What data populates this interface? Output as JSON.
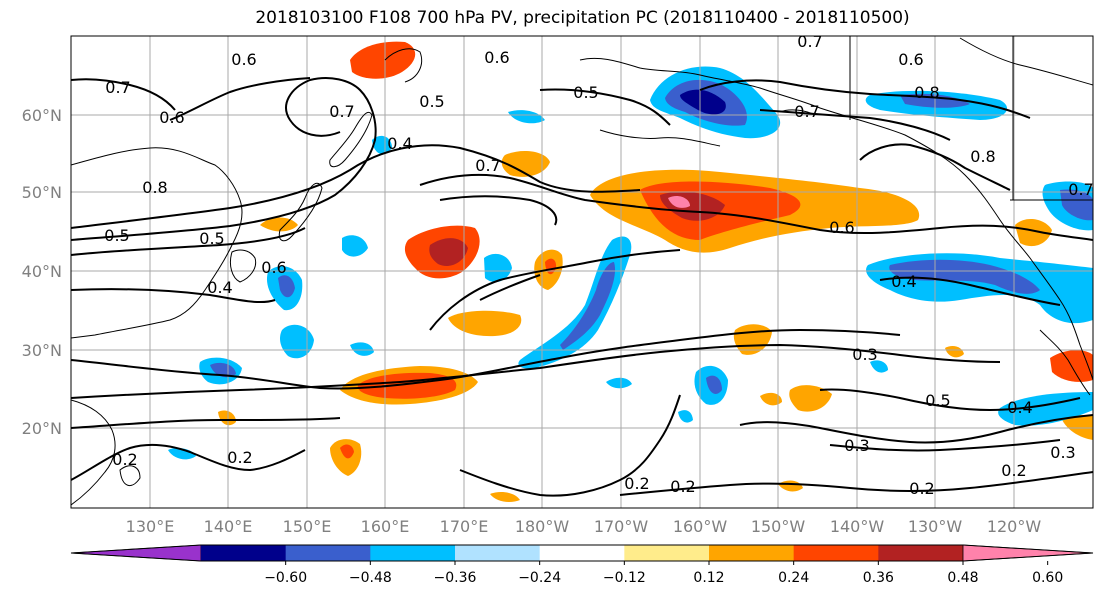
{
  "title": "2018103100 F108 700 hPa PV, precipitation PC (2018110400 - 2018110500)",
  "lat_labels": [
    "60°N",
    "50°N",
    "40°N",
    "30°N",
    "20°N"
  ],
  "lon_labels": [
    "130°E",
    "140°E",
    "150°E",
    "160°E",
    "170°E",
    "180°W",
    "170°W",
    "160°W",
    "150°W",
    "140°W",
    "130°W",
    "120°W"
  ],
  "colorbar": {
    "ticks": [
      "−0.60",
      "−0.48",
      "−0.36",
      "−0.24",
      "−0.12",
      "0.12",
      "0.24",
      "0.36",
      "0.48",
      "0.60"
    ],
    "colors": [
      "#9932cc",
      "#00008b",
      "#3a5fcd",
      "#00bfff",
      "#b0e2ff",
      "#ffffff",
      "#ffec8b",
      "#ffa500",
      "#ff4500",
      "#b22222",
      "#ff82ab"
    ]
  },
  "contour_labels": [
    "0.7",
    "0.6",
    "0.6",
    "0.7",
    "0.6",
    "0.5",
    "0.7",
    "0.5",
    "0.8",
    "0.6",
    "0.4",
    "0.7",
    "0.7",
    "0.8",
    "0.5",
    "0.5",
    "0.4",
    "0.6",
    "0.7",
    "0.8",
    "0.6",
    "0.4",
    "0.3",
    "0.5",
    "0.4",
    "0.3",
    "0.2",
    "0.2",
    "0.2",
    "0.2",
    "0.2",
    "0.2",
    "0.3"
  ]
}
